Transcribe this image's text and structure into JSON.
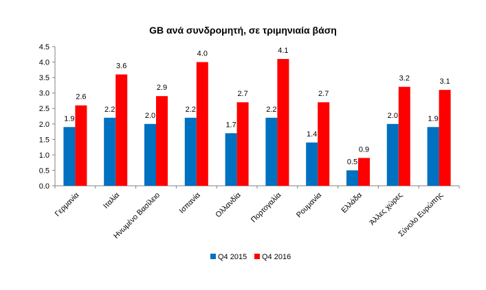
{
  "chart_data": {
    "type": "bar",
    "title": "GB ανά συνδρομητή, σε τριμηνιαία βάση",
    "categories": [
      "Γερμανία",
      "Ιταλία",
      "Ηνωμένο Βασίλειο",
      "Ισπανία",
      "Ολλανδία",
      "Πορτογαλία",
      "Ρουμανία",
      "Ελλάδα",
      "Άλλες χώρες",
      "Σύνολο Ευρώπης"
    ],
    "series": [
      {
        "name": "Q4 2015",
        "color": "#0070C0",
        "values": [
          1.9,
          2.2,
          2.0,
          2.2,
          1.7,
          2.2,
          1.4,
          0.5,
          2.0,
          1.9
        ]
      },
      {
        "name": "Q4 2016",
        "color": "#FF0000",
        "values": [
          2.6,
          3.6,
          2.9,
          4.0,
          2.7,
          4.1,
          2.7,
          0.9,
          3.2,
          3.1
        ]
      }
    ],
    "ylim": [
      0,
      4.5
    ],
    "yticks": [
      "0.0",
      "0.5",
      "1.0",
      "1.5",
      "2.0",
      "2.5",
      "3.0",
      "3.5",
      "4.0",
      "4.5"
    ],
    "xlabel": "",
    "ylabel": "",
    "grid": false,
    "legend_position": "bottom"
  }
}
